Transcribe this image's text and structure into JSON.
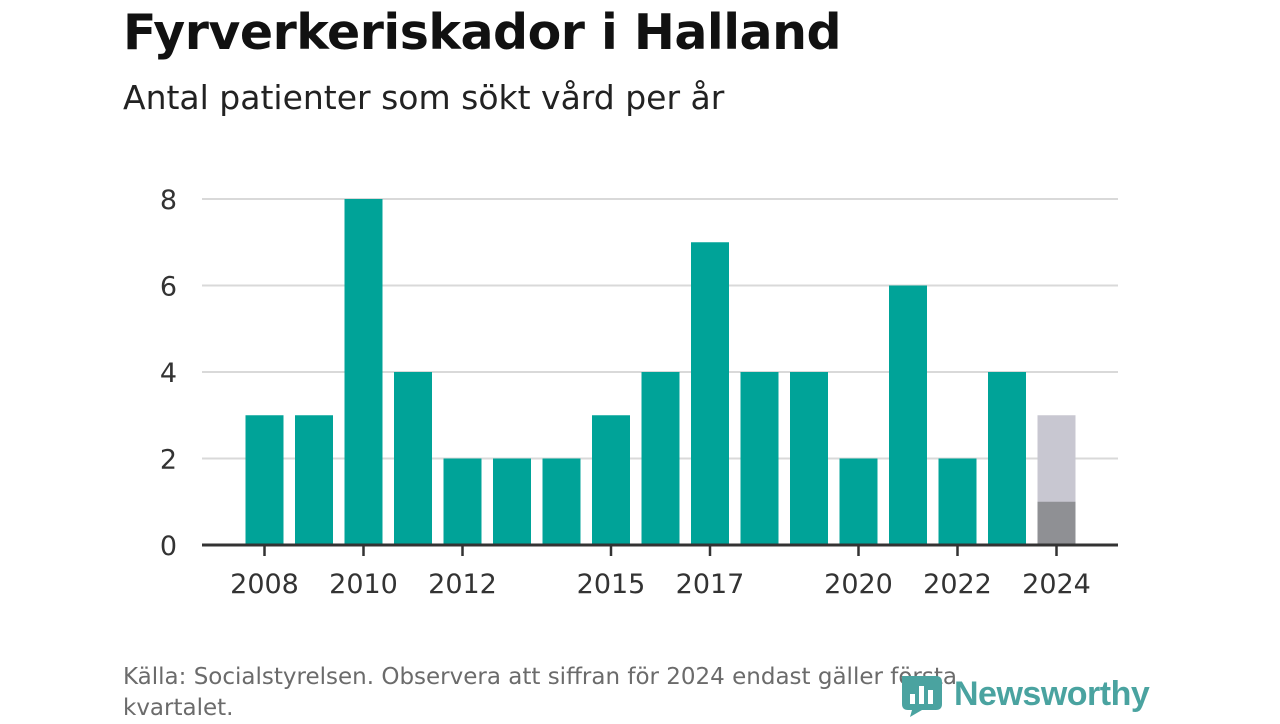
{
  "header": {
    "title": "Fyrverkeriskador i Halland",
    "subtitle": "Antal patienter som sökt vård per år"
  },
  "chart_data": {
    "type": "bar",
    "categories": [
      2008,
      2009,
      2010,
      2011,
      2012,
      2013,
      2014,
      2015,
      2016,
      2017,
      2018,
      2019,
      2020,
      2021,
      2022,
      2023,
      2024
    ],
    "values": [
      3,
      3,
      8,
      4,
      2,
      2,
      2,
      3,
      4,
      7,
      4,
      4,
      2,
      6,
      2,
      4,
      1
    ],
    "highlight": {
      "category": 2024,
      "reported_value": 1,
      "estimated_full_year": 3
    },
    "x_tick_labels": [
      "2008",
      "2010",
      "2012",
      "2015",
      "2017",
      "2020",
      "2022",
      "2024"
    ],
    "y_ticks": [
      0,
      2,
      4,
      6,
      8
    ],
    "ylim": [
      0,
      8
    ],
    "grid": true,
    "colors": {
      "bar": "#00a398",
      "partial_year": "#8f9094",
      "estimate": "#c8c7d1",
      "grid": "#d9d9d9",
      "axis": "#333333",
      "tick_text": "#333333"
    }
  },
  "footer": {
    "source_note": "Källa: Socialstyrelsen. Observera att siffran för 2024 endast gäller första kvartalet."
  },
  "brand": {
    "name": "Newsworthy",
    "icon": "bar-chart-logo-icon",
    "color": "#4aa3a0"
  }
}
